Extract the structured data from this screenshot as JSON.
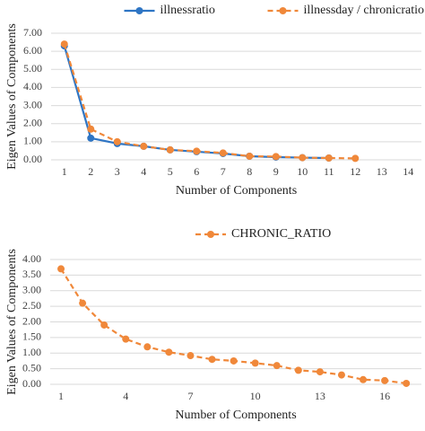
{
  "chart_data": [
    {
      "type": "line",
      "x_label": "Number of Components",
      "y_label": "Eigen Values of Components",
      "x": [
        1,
        2,
        3,
        4,
        5,
        6,
        7,
        8,
        9,
        10,
        11,
        12
      ],
      "series": [
        {
          "name": "illnessratio",
          "color": "#2e75c4",
          "dashed": false,
          "values": [
            6.3,
            1.2,
            0.9,
            0.75,
            0.55,
            0.45,
            0.35,
            0.2,
            0.15,
            0.12,
            0.1,
            null
          ]
        },
        {
          "name": "illnessday / chronicratio",
          "color": "#f0883a",
          "dashed": true,
          "values": [
            6.4,
            1.7,
            1.0,
            0.75,
            0.55,
            0.48,
            0.38,
            0.2,
            0.18,
            0.12,
            0.1,
            0.08
          ]
        }
      ],
      "xlim": [
        0.5,
        14.5
      ],
      "xticks": [
        1,
        2,
        3,
        4,
        5,
        6,
        7,
        8,
        9,
        10,
        11,
        12,
        13,
        14
      ],
      "ylim": [
        0,
        7
      ],
      "yticks": [
        {
          "value": 0,
          "label": "0.00"
        },
        {
          "value": 1,
          "label": "1.00"
        },
        {
          "value": 2,
          "label": "2.00"
        },
        {
          "value": 3,
          "label": "3.00"
        },
        {
          "value": 4,
          "label": "4.00"
        },
        {
          "value": 5,
          "label": "5.00"
        },
        {
          "value": 6,
          "label": "6.00"
        },
        {
          "value": 7,
          "label": "7.00"
        }
      ],
      "grid": true
    },
    {
      "type": "line",
      "x_label": "Number of Components",
      "y_label": "Eigen Values of Components",
      "x": [
        1,
        2,
        3,
        4,
        5,
        6,
        7,
        8,
        9,
        10,
        11,
        12,
        13,
        14,
        15,
        16,
        17
      ],
      "series": [
        {
          "name": "CHRONIC_RATIO",
          "color": "#f0883a",
          "dashed": true,
          "values": [
            3.7,
            2.6,
            1.9,
            1.45,
            1.2,
            1.03,
            0.92,
            0.8,
            0.75,
            0.68,
            0.6,
            0.45,
            0.4,
            0.3,
            0.15,
            0.12,
            0.03
          ]
        }
      ],
      "xlim": [
        0.5,
        17.7
      ],
      "xticks": [
        1,
        4,
        7,
        10,
        13,
        16
      ],
      "ylim": [
        0,
        4
      ],
      "yticks": [
        {
          "value": 0,
          "label": "0.00"
        },
        {
          "value": 0.5,
          "label": "0.50"
        },
        {
          "value": 1,
          "label": "1.00"
        },
        {
          "value": 1.5,
          "label": "1.50"
        },
        {
          "value": 2,
          "label": "2.00"
        },
        {
          "value": 2.5,
          "label": "2.50"
        },
        {
          "value": 3,
          "label": "3.00"
        },
        {
          "value": 3.5,
          "label": "3.50"
        },
        {
          "value": 4,
          "label": "4.00"
        }
      ],
      "grid": true
    }
  ]
}
